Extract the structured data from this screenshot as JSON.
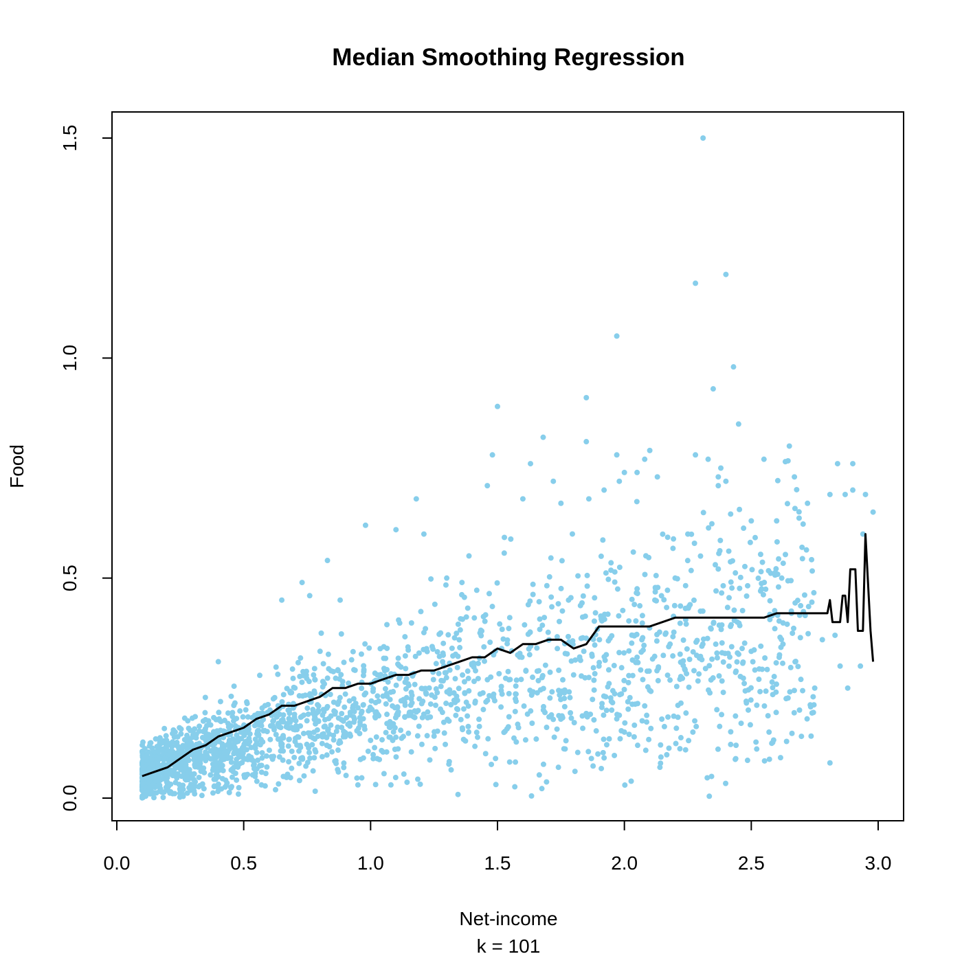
{
  "chart_data": {
    "type": "scatter",
    "title": "Median Smoothing Regression",
    "xlabel": "Net-income",
    "xsublabel": "k = 101",
    "ylabel": "Food",
    "xlim": [
      0.0,
      3.0
    ],
    "ylim": [
      0.0,
      1.5
    ],
    "x_ticks": [
      "0.0",
      "0.5",
      "1.0",
      "1.5",
      "2.0",
      "2.5",
      "3.0"
    ],
    "y_ticks": [
      "0.0",
      "0.5",
      "1.0",
      "1.5"
    ],
    "colors": {
      "points": "#87CEEB",
      "line": "#000000"
    },
    "series": [
      {
        "type": "scatter",
        "points": [
          [
            2.31,
            1.5
          ],
          [
            2.4,
            1.19
          ],
          [
            2.28,
            1.17
          ],
          [
            1.97,
            1.05
          ],
          [
            2.43,
            0.98
          ],
          [
            2.35,
            0.93
          ],
          [
            1.85,
            0.91
          ],
          [
            1.5,
            0.89
          ],
          [
            2.45,
            0.85
          ],
          [
            1.68,
            0.82
          ],
          [
            1.85,
            0.81
          ],
          [
            2.65,
            0.8
          ],
          [
            2.1,
            0.79
          ],
          [
            1.97,
            0.78
          ],
          [
            2.28,
            0.78
          ],
          [
            1.48,
            0.78
          ],
          [
            2.55,
            0.77
          ],
          [
            2.08,
            0.77
          ],
          [
            2.33,
            0.77
          ],
          [
            1.63,
            0.76
          ],
          [
            2.9,
            0.76
          ],
          [
            2.84,
            0.76
          ],
          [
            2.38,
            0.75
          ],
          [
            2.0,
            0.74
          ],
          [
            2.05,
            0.74
          ],
          [
            2.37,
            0.73
          ],
          [
            2.67,
            0.73
          ],
          [
            1.98,
            0.72
          ],
          [
            2.13,
            0.73
          ],
          [
            2.4,
            0.72
          ],
          [
            1.72,
            0.72
          ],
          [
            1.46,
            0.71
          ],
          [
            2.37,
            0.71
          ],
          [
            2.9,
            0.7
          ],
          [
            1.92,
            0.7
          ],
          [
            1.18,
            0.68
          ],
          [
            1.86,
            0.68
          ],
          [
            2.95,
            0.69
          ],
          [
            2.81,
            0.69
          ],
          [
            2.87,
            0.69
          ],
          [
            1.6,
            0.68
          ],
          [
            1.75,
            0.67
          ],
          [
            2.5,
            0.63
          ],
          [
            2.98,
            0.65
          ],
          [
            0.98,
            0.62
          ],
          [
            2.6,
            0.63
          ],
          [
            2.94,
            0.6
          ],
          [
            1.1,
            0.61
          ],
          [
            1.21,
            0.6
          ],
          [
            2.25,
            0.6
          ],
          [
            2.85,
            0.3
          ],
          [
            2.83,
            0.37
          ],
          [
            2.88,
            0.25
          ],
          [
            2.81,
            0.08
          ],
          [
            2.93,
            0.3
          ],
          [
            2.46,
            0.17
          ],
          [
            2.44,
            0.12
          ],
          [
            2.14,
            0.07
          ],
          [
            2.27,
            0.15
          ],
          [
            2.57,
            0.15
          ],
          [
            1.87,
            0.09
          ],
          [
            1.74,
            0.07
          ],
          [
            0.95,
            0.03
          ],
          [
            1.08,
            0.03
          ],
          [
            0.57,
            0.03
          ],
          [
            0.72,
            0.04
          ],
          [
            0.22,
            0.01
          ],
          [
            0.2,
            0.02
          ],
          [
            0.4,
            0.31
          ],
          [
            0.83,
            0.54
          ],
          [
            0.73,
            0.49
          ],
          [
            0.76,
            0.46
          ],
          [
            0.65,
            0.45
          ],
          [
            0.88,
            0.45
          ],
          [
            1.3,
            0.5
          ],
          [
            1.36,
            0.49
          ],
          [
            2.3,
            0.55
          ],
          [
            2.7,
            0.57
          ],
          [
            2.2,
            0.5
          ],
          [
            2.62,
            0.5
          ],
          [
            2.18,
            0.35
          ],
          [
            2.05,
            0.32
          ],
          [
            2.48,
            0.22
          ],
          [
            2.53,
            0.27
          ],
          [
            2.69,
            0.2
          ],
          [
            2.75,
            0.25
          ],
          [
            2.78,
            0.36
          ],
          [
            2.72,
            0.18
          ],
          [
            2.61,
            0.32
          ],
          [
            2.0,
            0.15
          ],
          [
            1.95,
            0.2
          ],
          [
            1.9,
            0.3
          ],
          [
            1.8,
            0.28
          ],
          [
            1.78,
            0.45
          ],
          [
            2.12,
            0.45
          ]
        ]
      },
      {
        "type": "line",
        "points": [
          [
            0.1,
            0.05
          ],
          [
            0.15,
            0.06
          ],
          [
            0.2,
            0.07
          ],
          [
            0.25,
            0.09
          ],
          [
            0.3,
            0.11
          ],
          [
            0.35,
            0.12
          ],
          [
            0.4,
            0.14
          ],
          [
            0.45,
            0.15
          ],
          [
            0.5,
            0.16
          ],
          [
            0.55,
            0.18
          ],
          [
            0.6,
            0.19
          ],
          [
            0.65,
            0.21
          ],
          [
            0.7,
            0.21
          ],
          [
            0.75,
            0.22
          ],
          [
            0.8,
            0.23
          ],
          [
            0.85,
            0.25
          ],
          [
            0.9,
            0.25
          ],
          [
            0.95,
            0.26
          ],
          [
            1.0,
            0.26
          ],
          [
            1.05,
            0.27
          ],
          [
            1.1,
            0.28
          ],
          [
            1.15,
            0.28
          ],
          [
            1.2,
            0.29
          ],
          [
            1.25,
            0.29
          ],
          [
            1.3,
            0.3
          ],
          [
            1.35,
            0.31
          ],
          [
            1.4,
            0.32
          ],
          [
            1.45,
            0.32
          ],
          [
            1.5,
            0.34
          ],
          [
            1.55,
            0.33
          ],
          [
            1.6,
            0.35
          ],
          [
            1.65,
            0.35
          ],
          [
            1.7,
            0.36
          ],
          [
            1.75,
            0.36
          ],
          [
            1.8,
            0.34
          ],
          [
            1.85,
            0.35
          ],
          [
            1.9,
            0.39
          ],
          [
            1.95,
            0.39
          ],
          [
            2.0,
            0.39
          ],
          [
            2.05,
            0.39
          ],
          [
            2.1,
            0.39
          ],
          [
            2.15,
            0.4
          ],
          [
            2.2,
            0.41
          ],
          [
            2.25,
            0.41
          ],
          [
            2.3,
            0.41
          ],
          [
            2.35,
            0.41
          ],
          [
            2.4,
            0.41
          ],
          [
            2.45,
            0.41
          ],
          [
            2.5,
            0.41
          ],
          [
            2.55,
            0.41
          ],
          [
            2.6,
            0.42
          ],
          [
            2.65,
            0.42
          ],
          [
            2.7,
            0.42
          ],
          [
            2.75,
            0.42
          ],
          [
            2.8,
            0.42
          ],
          [
            2.81,
            0.45
          ],
          [
            2.82,
            0.4
          ],
          [
            2.85,
            0.4
          ],
          [
            2.86,
            0.46
          ],
          [
            2.87,
            0.46
          ],
          [
            2.88,
            0.4
          ],
          [
            2.89,
            0.52
          ],
          [
            2.91,
            0.52
          ],
          [
            2.92,
            0.38
          ],
          [
            2.94,
            0.38
          ],
          [
            2.95,
            0.6
          ],
          [
            2.97,
            0.38
          ],
          [
            2.98,
            0.31
          ]
        ]
      }
    ]
  }
}
